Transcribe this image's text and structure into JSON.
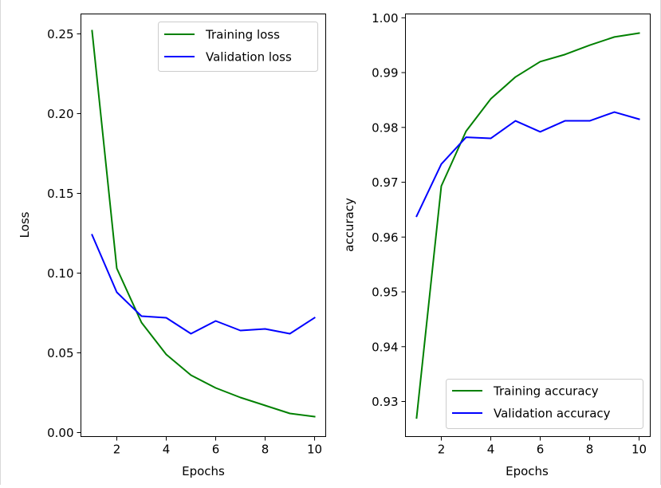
{
  "chart_data": [
    {
      "type": "line",
      "x": [
        1,
        2,
        3,
        4,
        5,
        6,
        7,
        8,
        9,
        10
      ],
      "xlim": [
        0.55,
        10.45
      ],
      "ylim": [
        -0.0025,
        0.2625
      ],
      "xticks": [
        "2",
        "4",
        "6",
        "8",
        "10"
      ],
      "yticks": [
        "0.00",
        "0.05",
        "0.10",
        "0.15",
        "0.20",
        "0.25"
      ],
      "xlabel": "Epochs",
      "ylabel": "Loss",
      "legend_position": "upper right",
      "series": [
        {
          "name": "Training loss",
          "color": "#008000",
          "values": [
            0.252,
            0.103,
            0.069,
            0.049,
            0.036,
            0.028,
            0.022,
            0.017,
            0.012,
            0.01
          ]
        },
        {
          "name": "Validation loss",
          "color": "#0000ff",
          "values": [
            0.124,
            0.088,
            0.073,
            0.072,
            0.062,
            0.07,
            0.064,
            0.065,
            0.062,
            0.072
          ]
        }
      ]
    },
    {
      "type": "line",
      "x": [
        1,
        2,
        3,
        4,
        5,
        6,
        7,
        8,
        9,
        10
      ],
      "xlim": [
        0.55,
        10.45
      ],
      "ylim": [
        0.9236,
        1.0007
      ],
      "xticks": [
        "2",
        "4",
        "6",
        "8",
        "10"
      ],
      "yticks": [
        "0.93",
        "0.94",
        "0.95",
        "0.96",
        "0.97",
        "0.98",
        "0.99",
        "1.00"
      ],
      "xlabel": "Epochs",
      "ylabel": "accuracy",
      "legend_position": "lower right",
      "series": [
        {
          "name": "Training accuracy",
          "color": "#008000",
          "values": [
            0.927,
            0.9693,
            0.9793,
            0.9852,
            0.9892,
            0.992,
            0.9933,
            0.995,
            0.9965,
            0.9972
          ]
        },
        {
          "name": "Validation accuracy",
          "color": "#0000ff",
          "values": [
            0.9638,
            0.9733,
            0.9782,
            0.978,
            0.9812,
            0.9792,
            0.9812,
            0.9812,
            0.9828,
            0.9815
          ]
        }
      ]
    }
  ]
}
